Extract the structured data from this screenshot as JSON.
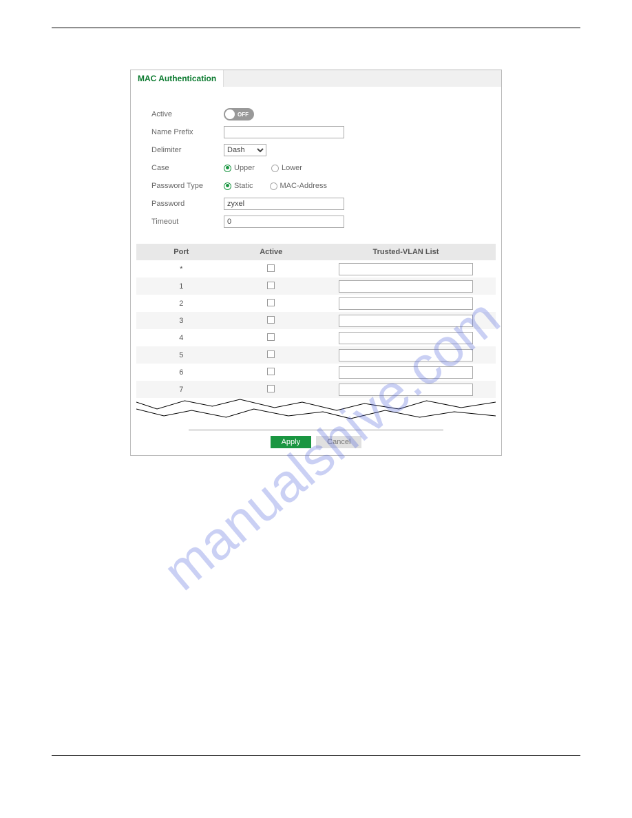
{
  "watermark_text": "manualshive.com",
  "panel": {
    "tab_title": "MAC Authentication",
    "form": {
      "active": {
        "label": "Active",
        "state": "OFF"
      },
      "name_prefix": {
        "label": "Name Prefix",
        "value": ""
      },
      "delimiter": {
        "label": "Delimiter",
        "selected": "Dash"
      },
      "case": {
        "label": "Case",
        "options": [
          "Upper",
          "Lower"
        ],
        "selected": "Upper"
      },
      "password_type": {
        "label": "Password Type",
        "options": [
          "Static",
          "MAC-Address"
        ],
        "selected": "Static"
      },
      "password": {
        "label": "Password",
        "value": "zyxel"
      },
      "timeout": {
        "label": "Timeout",
        "value": "0"
      }
    },
    "table": {
      "headers": {
        "port": "Port",
        "active": "Active",
        "vlan": "Trusted-VLAN List"
      },
      "rows": [
        {
          "port": "*",
          "link": false
        },
        {
          "port": "1",
          "link": true
        },
        {
          "port": "2",
          "link": false
        },
        {
          "port": "3",
          "link": false
        },
        {
          "port": "4",
          "link": false
        },
        {
          "port": "5",
          "link": false
        },
        {
          "port": "6",
          "link": false
        },
        {
          "port": "7",
          "link": false
        }
      ]
    },
    "buttons": {
      "apply": "Apply",
      "cancel": "Cancel"
    }
  },
  "colors": {
    "accent_green": "#1a9641",
    "tab_green": "#0b7a2f",
    "watermark_blue": "rgba(80,100,220,0.30)",
    "toggle_gray": "#999999",
    "header_gray": "#e8e8e8"
  }
}
